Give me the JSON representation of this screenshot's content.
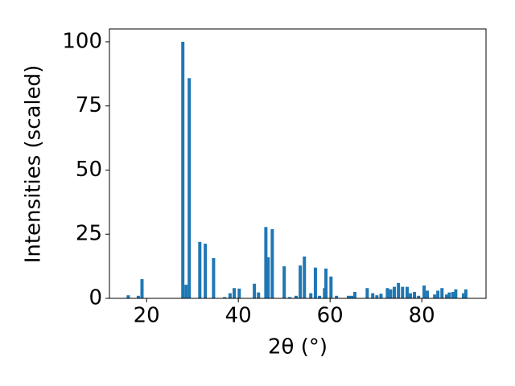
{
  "chart_data": {
    "type": "bar",
    "x_label": "2θ (°)",
    "y_label": "Intensities (scaled)",
    "color": "#1f77b4",
    "x": [
      16.0,
      18.2,
      19.0,
      27.9,
      28.6,
      29.3,
      31.6,
      32.8,
      34.6,
      37.0,
      38.2,
      39.1,
      40.2,
      43.5,
      44.4,
      46.0,
      46.5,
      47.4,
      50.0,
      51.2,
      52.6,
      53.5,
      54.4,
      55.8,
      56.8,
      57.7,
      58.8,
      59.1,
      60.2,
      61.4,
      64.0,
      64.7,
      65.4,
      68.1,
      69.3,
      70.2,
      71.1,
      72.5,
      73.2,
      74.0,
      74.9,
      75.8,
      76.8,
      77.5,
      78.4,
      79.3,
      80.5,
      81.2,
      82.8,
      83.5,
      84.4,
      85.4,
      86.0,
      86.8,
      87.4,
      89.1,
      89.6
    ],
    "values": [
      1.2,
      1.0,
      7.5,
      100,
      5.3,
      85.8,
      22,
      21.3,
      15.7,
      0.5,
      2,
      4,
      3.8,
      5.7,
      2.3,
      27.8,
      16,
      27,
      12.5,
      0.5,
      1,
      12.8,
      16.3,
      2,
      12,
      1,
      4,
      11.6,
      8.5,
      1,
      1,
      1,
      2.5,
      4,
      2,
      1.2,
      1.8,
      4,
      3.5,
      4.5,
      6,
      4.5,
      4.5,
      2,
      2.5,
      1,
      5,
      3,
      1.5,
      3,
      4,
      1.5,
      2.3,
      2.5,
      3.5,
      2,
      3.5
    ],
    "xlim": [
      11.9,
      94.0
    ],
    "ylim": [
      0,
      105
    ],
    "xticks": [
      20,
      40,
      60,
      80
    ],
    "yticks": [
      0,
      25,
      50,
      75,
      100
    ]
  }
}
